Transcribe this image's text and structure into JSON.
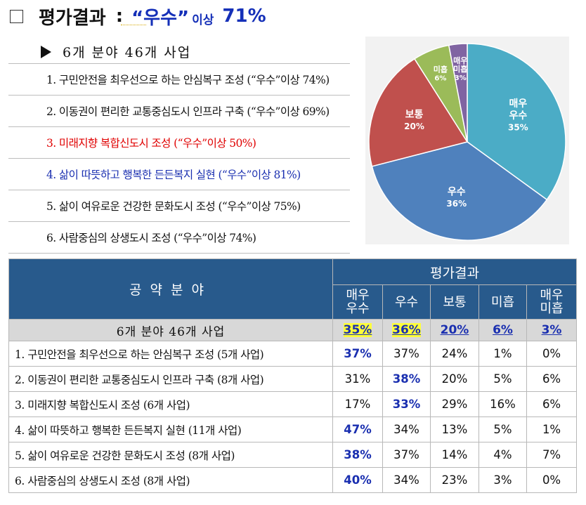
{
  "title": {
    "main": "평가결과",
    "colon": ":",
    "quote": "“우수”",
    "small": "이상",
    "pct": "71%"
  },
  "subheading": "6개 분야 46개 사업",
  "list": [
    {
      "text": "1. 구민안전을 최우선으로 하는 안심복구 조성 (“우수”이상 74%)",
      "color": "black"
    },
    {
      "text": "2. 이동권이 편리한 교통중심도시 인프라 구축 (“우수”이상 69%)",
      "color": "black"
    },
    {
      "text": "3. 미래지향 복합신도시 조성 (“우수”이상 50%)",
      "color": "red"
    },
    {
      "text": "4. 삶이 따뜻하고 행복한 든든복지 실현 (“우수”이상 81%)",
      "color": "blue"
    },
    {
      "text": "5. 삶이 여유로운 건강한 문화도시 조성 (“우수”이상 75%)",
      "color": "black"
    },
    {
      "text": "6. 사람중심의 상생도시 조성 (“우수”이상 74%)",
      "color": "black"
    }
  ],
  "chart_data": {
    "type": "pie",
    "slices": [
      {
        "label": [
          "매우",
          "우수"
        ],
        "pct_label": "35%",
        "value": 35,
        "color": "#4bacc6"
      },
      {
        "label": [
          "우수"
        ],
        "pct_label": "36%",
        "value": 36,
        "color": "#4f81bd"
      },
      {
        "label": [
          "보통"
        ],
        "pct_label": "20%",
        "value": 20,
        "color": "#c0504d"
      },
      {
        "label": [
          "미흡"
        ],
        "pct_label": "6%",
        "value": 6,
        "color": "#9bbb59"
      },
      {
        "label": [
          "매우",
          "미흡"
        ],
        "pct_label": "3%",
        "value": 3,
        "color": "#8064a2"
      }
    ]
  },
  "table": {
    "header_area": "공약분야",
    "header_result": "평가결과",
    "sub_headers": [
      [
        "매우",
        "우수"
      ],
      [
        "우수"
      ],
      [
        "보통"
      ],
      [
        "미흡"
      ],
      [
        "매우",
        "미흡"
      ]
    ],
    "summary": {
      "label": "6개 분야 46개 사업",
      "values": [
        "35%",
        "36%",
        "20%",
        "6%",
        "3%"
      ]
    },
    "rows": [
      {
        "label": "1. 구민안전을 최우선으로 하는 안심복구 조성 (5개 사업)",
        "values": [
          "37%",
          "37%",
          "24%",
          "1%",
          "0%"
        ],
        "bold": 0
      },
      {
        "label": "2. 이동권이 편리한 교통중심도시 인프라 구축 (8개 사업)",
        "values": [
          "31%",
          "38%",
          "20%",
          "5%",
          "6%"
        ],
        "bold": 1
      },
      {
        "label": "3. 미래지향 복합신도시 조성 (6개 사업)",
        "values": [
          "17%",
          "33%",
          "29%",
          "16%",
          "6%"
        ],
        "bold": 1
      },
      {
        "label": "4. 삶이 따뜻하고 행복한 든든복지 실현 (11개 사업)",
        "values": [
          "47%",
          "34%",
          "13%",
          "5%",
          "1%"
        ],
        "bold": 0
      },
      {
        "label": "5. 삶이 여유로운 건강한 문화도시 조성 (8개 사업)",
        "values": [
          "38%",
          "37%",
          "14%",
          "4%",
          "7%"
        ],
        "bold": 0
      },
      {
        "label": "6. 사람중심의 상생도시 조성 (8개 사업)",
        "values": [
          "40%",
          "34%",
          "23%",
          "3%",
          "0%"
        ],
        "bold": 0
      }
    ]
  }
}
